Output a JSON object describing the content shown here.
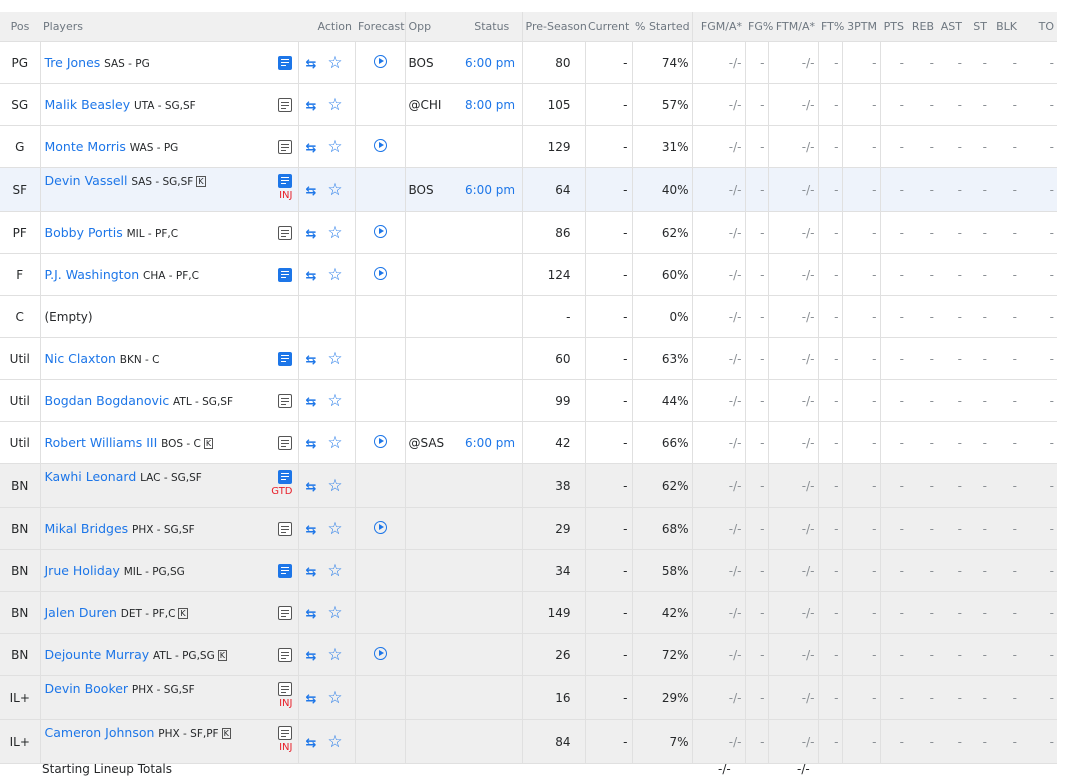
{
  "headers": [
    "Pos",
    "Players",
    "Action",
    "Forecast",
    "Opp",
    "Status",
    "Pre-Season",
    "Current",
    "% Started",
    "FGM/A*",
    "FG%",
    "FTM/A*",
    "FT%",
    "3PTM",
    "PTS",
    "REB",
    "AST",
    "ST",
    "BLK",
    "TO"
  ],
  "colors": {
    "link": "#1d76e8",
    "injury": "#e8202a",
    "bench_bg": "#efefef",
    "highlight_bg": "#eef3fb"
  },
  "rows": [
    {
      "pos": "PG",
      "name": "Tre Jones",
      "team": "SAS - PG",
      "note": "filled",
      "forecast": true,
      "opp": "BOS",
      "status": "6:00 pm",
      "pre": "80",
      "cur": "-",
      "started": "74%"
    },
    {
      "pos": "SG",
      "name": "Malik Beasley",
      "team": "UTA - SG,SF",
      "note": "outline",
      "forecast": false,
      "opp": "@CHI",
      "status": "8:00 pm",
      "pre": "105",
      "cur": "-",
      "started": "57%"
    },
    {
      "pos": "G",
      "name": "Monte Morris",
      "team": "WAS - PG",
      "note": "outline",
      "forecast": true,
      "opp": "",
      "status": "",
      "pre": "129",
      "cur": "-",
      "started": "31%"
    },
    {
      "pos": "SF",
      "name": "Devin Vassell",
      "team": "SAS - SG,SF",
      "keeper": "K",
      "note": "filled",
      "injury": "INJ",
      "forecast": false,
      "opp": "BOS",
      "status": "6:00 pm",
      "pre": "64",
      "cur": "-",
      "started": "40%",
      "highlight": true
    },
    {
      "pos": "PF",
      "name": "Bobby Portis",
      "team": "MIL - PF,C",
      "note": "outline",
      "forecast": true,
      "opp": "",
      "status": "",
      "pre": "86",
      "cur": "-",
      "started": "62%"
    },
    {
      "pos": "F",
      "name": "P.J. Washington",
      "team": "CHA - PF,C",
      "note": "filled",
      "forecast": true,
      "opp": "",
      "status": "",
      "pre": "124",
      "cur": "-",
      "started": "60%"
    },
    {
      "pos": "C",
      "name": "(Empty)",
      "empty": true,
      "opp": "",
      "status": "",
      "pre": "-",
      "cur": "-",
      "started": "0%"
    },
    {
      "pos": "Util",
      "name": "Nic Claxton",
      "team": "BKN - C",
      "note": "filled",
      "forecast": false,
      "opp": "",
      "status": "",
      "pre": "60",
      "cur": "-",
      "started": "63%"
    },
    {
      "pos": "Util",
      "name": "Bogdan Bogdanovic",
      "team": "ATL - SG,SF",
      "note": "outline",
      "forecast": false,
      "opp": "",
      "status": "",
      "pre": "99",
      "cur": "-",
      "started": "44%"
    },
    {
      "pos": "Util",
      "name": "Robert Williams III",
      "team": "BOS - C",
      "keeper": "K",
      "note": "outline",
      "forecast": true,
      "opp": "@SAS",
      "status": "6:00 pm",
      "pre": "42",
      "cur": "-",
      "started": "66%"
    },
    {
      "pos": "BN",
      "name": "Kawhi Leonard",
      "team": "LAC - SG,SF",
      "note": "filled",
      "injury": "GTD",
      "forecast": false,
      "opp": "",
      "status": "",
      "pre": "38",
      "cur": "-",
      "started": "62%",
      "bench": true
    },
    {
      "pos": "BN",
      "name": "Mikal Bridges",
      "team": "PHX - SG,SF",
      "note": "outline",
      "forecast": true,
      "opp": "",
      "status": "",
      "pre": "29",
      "cur": "-",
      "started": "68%",
      "bench": true
    },
    {
      "pos": "BN",
      "name": "Jrue Holiday",
      "team": "MIL - PG,SG",
      "note": "filled",
      "forecast": false,
      "opp": "",
      "status": "",
      "pre": "34",
      "cur": "-",
      "started": "58%",
      "bench": true
    },
    {
      "pos": "BN",
      "name": "Jalen Duren",
      "team": "DET - PF,C",
      "keeper": "K",
      "note": "outline",
      "forecast": false,
      "opp": "",
      "status": "",
      "pre": "149",
      "cur": "-",
      "started": "42%",
      "bench": true
    },
    {
      "pos": "BN",
      "name": "Dejounte Murray",
      "team": "ATL - PG,SG",
      "keeper": "K",
      "note": "outline",
      "forecast": true,
      "opp": "",
      "status": "",
      "pre": "26",
      "cur": "-",
      "started": "72%",
      "bench": true
    },
    {
      "pos": "IL+",
      "name": "Devin Booker",
      "team": "PHX - SG,SF",
      "note": "outline",
      "injury": "INJ",
      "forecast": false,
      "opp": "",
      "status": "",
      "pre": "16",
      "cur": "-",
      "started": "29%",
      "bench": true
    },
    {
      "pos": "IL+",
      "name": "Cameron Johnson",
      "team": "PHX - SF,PF",
      "keeper": "K",
      "note": "outline",
      "injury": "INJ",
      "forecast": false,
      "opp": "",
      "status": "",
      "pre": "84",
      "cur": "-",
      "started": "7%",
      "bench": true
    }
  ],
  "stats_placeholder": {
    "fgma": "-/-",
    "fg": "-",
    "ftma": "-/-",
    "ft": "-",
    "other": "-"
  },
  "totals": {
    "label": "Starting Lineup Totals",
    "fgma": "-/-",
    "ftma": "-/-"
  }
}
